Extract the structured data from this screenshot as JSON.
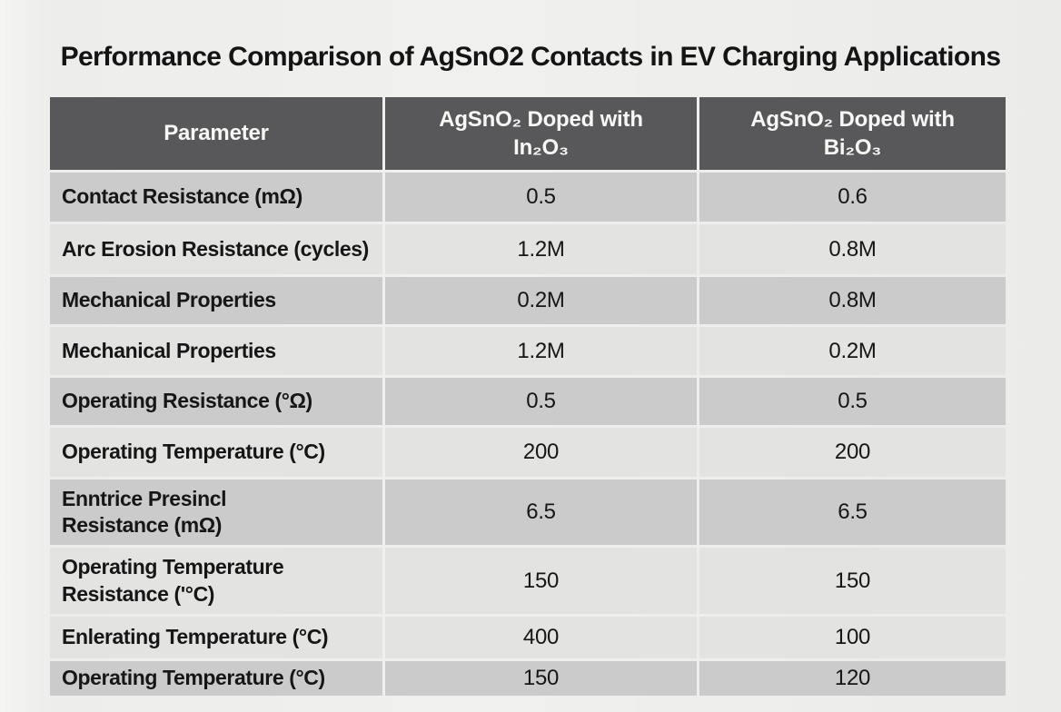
{
  "page": {
    "title": "Performance Comparison of AgSnO2 Contacts in EV Charging Applications"
  },
  "table": {
    "header": {
      "col0": "Parameter",
      "col1": "AgSnO₂ Doped with\nIn₂O₃",
      "col2": "AgSnO₂ Doped with\nBi₂O₃"
    },
    "rows": [
      {
        "label": "Contact Resistance (mΩ)",
        "v1": "0.5",
        "v2": "0.6"
      },
      {
        "label": "Arc Erosion Resistance (cycles)",
        "v1": "1.2M",
        "v2": "0.8M"
      },
      {
        "label": "Mechanical Properties",
        "v1": "0.2M",
        "v2": "0.8M"
      },
      {
        "label": "Mechanical Properties",
        "v1": "1.2M",
        "v2": "0.2M"
      },
      {
        "label": "Operating Resistance (°Ω)",
        "v1": "0.5",
        "v2": "0.5"
      },
      {
        "label": "Operating Temperature (°C)",
        "v1": "200",
        "v2": "200"
      },
      {
        "label": "Enntrice Presincl\nResistance (mΩ)",
        "v1": "6.5",
        "v2": "6.5"
      },
      {
        "label": "Operating Temperature\nResistance ('°C)",
        "v1": "150",
        "v2": "150"
      },
      {
        "label": "Enlerating Temperature (°C)",
        "v1": "400",
        "v2": "100"
      },
      {
        "label": "Operating Temperature (°C)",
        "v1": "150",
        "v2": "120"
      }
    ]
  },
  "colors": {
    "page_bg": "#efefed",
    "header_bg": "#58585a",
    "header_text": "#f7f7f6",
    "row_dark": "#cbcbcb",
    "row_light": "#e3e3e1",
    "title_text": "#141414",
    "cell_text": "#161616"
  },
  "chart_data": {
    "type": "table",
    "title": "Performance Comparison of AgSnO2 Contacts in EV Charging Applications",
    "columns": [
      "Parameter",
      "AgSnO₂ Doped with In₂O₃",
      "AgSnO₂ Doped with Bi₂O₃"
    ],
    "rows": [
      [
        "Contact Resistance (mΩ)",
        "0.5",
        "0.6"
      ],
      [
        "Arc Erosion Resistance (cycles)",
        "1.2M",
        "0.8M"
      ],
      [
        "Mechanical Properties",
        "0.2M",
        "0.8M"
      ],
      [
        "Mechanical Properties",
        "1.2M",
        "0.2M"
      ],
      [
        "Operating Resistance (°Ω)",
        "0.5",
        "0.5"
      ],
      [
        "Operating Temperature (°C)",
        "200",
        "200"
      ],
      [
        "Enntrice Presincl Resistance (mΩ)",
        "6.5",
        "6.5"
      ],
      [
        "Operating Temperature Resistance ('°C)",
        "150",
        "150"
      ],
      [
        "Enlerating Temperature (°C)",
        "400",
        "100"
      ],
      [
        "Operating Temperature (°C)",
        "150",
        "120"
      ]
    ],
    "layout": {
      "header_style": "dark-gray",
      "row_striping": "alternating-gray",
      "legend_position": "none",
      "grid": false
    }
  }
}
